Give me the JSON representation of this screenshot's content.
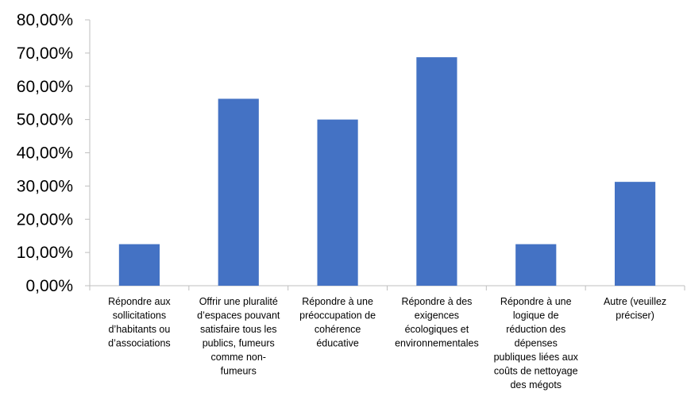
{
  "chart_data": {
    "type": "bar",
    "title": "",
    "xlabel": "",
    "ylabel": "",
    "ylim": [
      0,
      80
    ],
    "yticks": [
      "0,00%",
      "10,00%",
      "20,00%",
      "30,00%",
      "40,00%",
      "50,00%",
      "60,00%",
      "70,00%",
      "80,00%"
    ],
    "grid": false,
    "legend": "none",
    "bar_color": "#4472C4",
    "categories": [
      [
        "Répondre aux",
        "sollicitations",
        "d’habitants ou",
        "d’associations"
      ],
      [
        "Offrir une pluralité",
        "d’espaces pouvant",
        "satisfaire tous les",
        "publics, fumeurs",
        "comme non-",
        "fumeurs"
      ],
      [
        "Répondre à une",
        "préoccupation de",
        "cohérence",
        "éducative"
      ],
      [
        "Répondre à des",
        "exigences",
        "écologiques et",
        "environnementales"
      ],
      [
        "Répondre à une",
        "logique de",
        "réduction des",
        "dépenses",
        "publiques liées aux",
        "coûts de nettoyage",
        "des mégots"
      ],
      [
        "Autre (veuillez",
        "préciser)"
      ]
    ],
    "values": [
      12.5,
      56.25,
      50.0,
      68.75,
      12.5,
      31.25
    ]
  }
}
